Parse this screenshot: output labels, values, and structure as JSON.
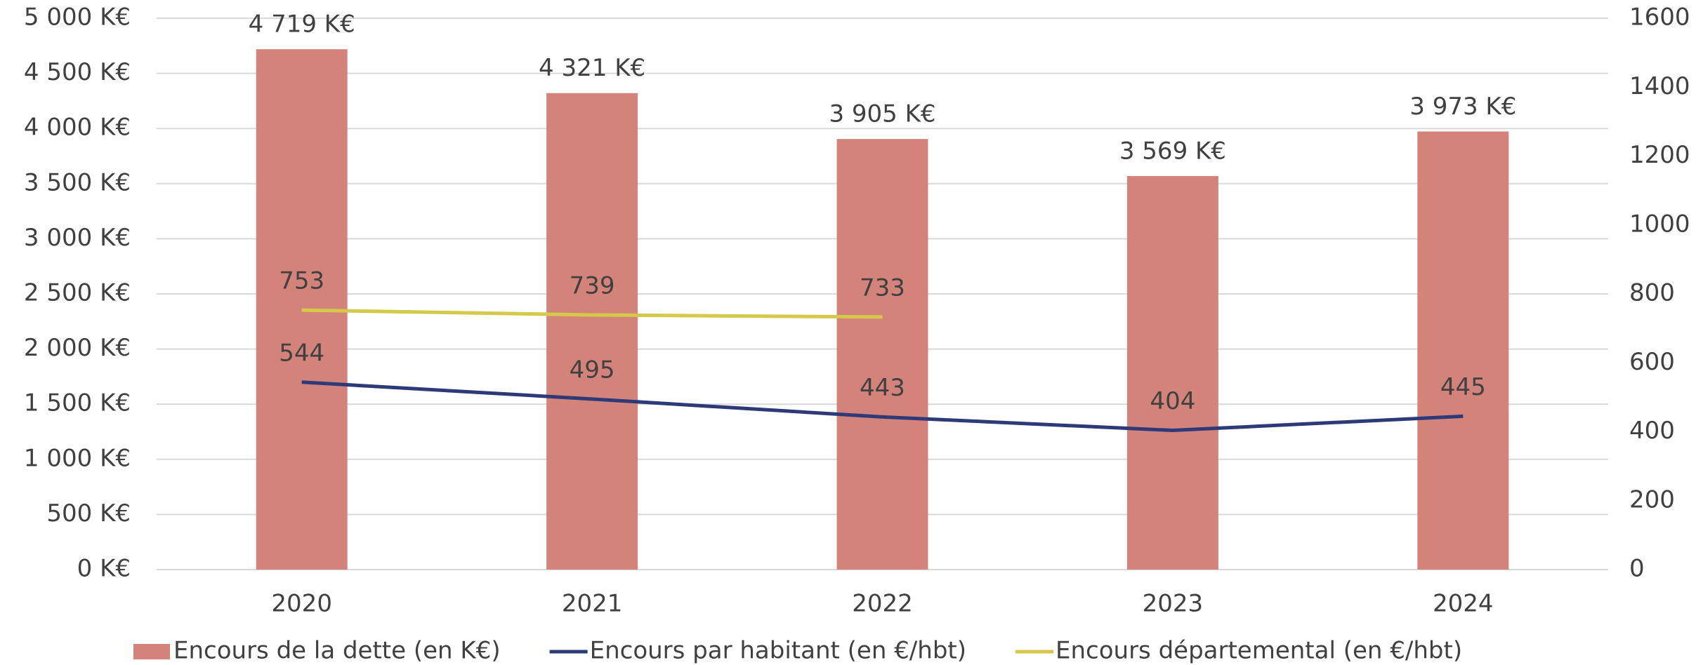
{
  "chart_data": {
    "type": "bar",
    "categories": [
      "2020",
      "2021",
      "2022",
      "2023",
      "2024"
    ],
    "series": [
      {
        "name": "Encours de la dette (en K€)",
        "type": "bar",
        "color": "#d4837a",
        "values": [
          4719,
          4321,
          3905,
          3569,
          3973
        ],
        "value_labels": [
          "4 719 K€",
          "4 321 K€",
          "3 905 K€",
          "3 569 K€",
          "3 973 K€"
        ]
      },
      {
        "name": "Encours par habitant (en €/hbt)",
        "type": "line",
        "axis": "y2",
        "color": "#2e3a78",
        "values": [
          544,
          495,
          443,
          404,
          445
        ]
      },
      {
        "name": "Encours départemental (en €/hbt)",
        "type": "line",
        "axis": "y2",
        "color": "#d4c94a",
        "values": [
          753,
          739,
          733,
          null,
          null
        ]
      }
    ],
    "ylim": [
      0,
      5000
    ],
    "yticks": [
      {
        "value": 0,
        "label": "0 K€"
      },
      {
        "value": 500,
        "label": "500 K€"
      },
      {
        "value": 1000,
        "label": "1 000 K€"
      },
      {
        "value": 1500,
        "label": "1 500 K€"
      },
      {
        "value": 2000,
        "label": "2 000 K€"
      },
      {
        "value": 2500,
        "label": "2 500 K€"
      },
      {
        "value": 3000,
        "label": "3 000 K€"
      },
      {
        "value": 3500,
        "label": "3 500 K€"
      },
      {
        "value": 4000,
        "label": "4 000 K€"
      },
      {
        "value": 4500,
        "label": "4 500 K€"
      },
      {
        "value": 5000,
        "label": "5 000 K€"
      }
    ],
    "y2lim": [
      0,
      1600
    ],
    "y2ticks": [
      0,
      200,
      400,
      600,
      800,
      1000,
      1200,
      1400,
      1600
    ],
    "grid": true,
    "legend": "bottom"
  }
}
